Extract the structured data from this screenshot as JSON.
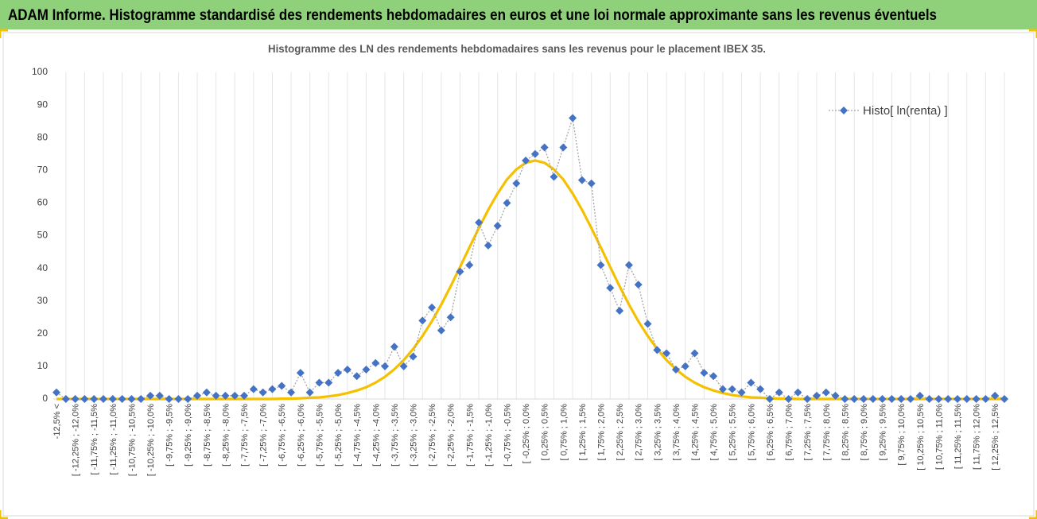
{
  "header": {
    "title": "ADAM Informe. Histogramme standardisé des rendements hebdomadaires en euros et une loi normale approximante sans les revenus éventuels"
  },
  "chart_data": {
    "type": "line",
    "title": "Histogramme des LN des rendements hebdomadaires sans les revenus pour le placement IBEX 35.",
    "categories": [
      "-12,5% <",
      null,
      "[ -12,25% ; -12,0%",
      null,
      "[ -11,75% ; -11,5%",
      null,
      "[ -11,25% ; -11,0%",
      null,
      "[ -10,75% ; -10,5%",
      null,
      "[ -10,25% ; -10,0%",
      null,
      "[ -9,75% ; -9,5%",
      null,
      "[ -9,25% ; -9,0%",
      null,
      "[ -8,75% ; -8,5%",
      null,
      "[ -8,25% ; -8,0%",
      null,
      "[ -7,75% ; -7,5%",
      null,
      "[ -7,25% ; -7,0%",
      null,
      "[ -6,75% ; -6,5%",
      null,
      "[ -6,25% ; -6,0%",
      null,
      "[ -5,75% ; -5,5%",
      null,
      "[ -5,25% ; -5,0%",
      null,
      "[ -4,75% ; -4,5%",
      null,
      "[ -4,25% ; -4,0%",
      null,
      "[ -3,75% ; -3,5%",
      null,
      "[ -3,25% ; -3,0%",
      null,
      "[ -2,75% ; -2,5%",
      null,
      "[ -2,25% ; -2,0%",
      null,
      "[ -1,75% ; -1,5%",
      null,
      "[ -1,25% ; -1,0%",
      null,
      "[ -0,75% ; -0,5%",
      null,
      "[ -0,25% ; 0,0%",
      null,
      "[ 0,25% ; 0,5%",
      null,
      "[ 0,75% ; 1,0%",
      null,
      "[ 1,25% ; 1,5%",
      null,
      "[ 1,75% ; 2,0%",
      null,
      "[ 2,25% ; 2,5%",
      null,
      "[ 2,75% ; 3,0%",
      null,
      "[ 3,25% ; 3,5%",
      null,
      "[ 3,75% ; 4,0%",
      null,
      "[ 4,25% ; 4,5%",
      null,
      "[ 4,75% ; 5,0%",
      null,
      "[ 5,25% ; 5,5%",
      null,
      "[ 5,75% ; 6,0%",
      null,
      "[ 6,25% ; 6,5%",
      null,
      "[ 6,75% ; 7,0%",
      null,
      "[ 7,25% ; 7,5%",
      null,
      "[ 7,75% ; 8,0%",
      null,
      "[ 8,25% ; 8,5%",
      null,
      "[ 8,75% ; 9,0%",
      null,
      "[ 9,25% ; 9,5%",
      null,
      "[ 9,75% ; 10,0%",
      null,
      "[ 10,25% ; 10,5%",
      null,
      "[ 10,75% ; 11,0%",
      null,
      "[ 11,25% ; 11,5%",
      null,
      "[ 11,75% ; 12,0%",
      null,
      "[ 12,25% ; 12,5%",
      null
    ],
    "series": [
      {
        "name": "Histo[ ln(renta) ]",
        "color": "#4472c4",
        "line_color": "#a6a6a6",
        "values": [
          2,
          0,
          0,
          0,
          0,
          0,
          0,
          0,
          0,
          0,
          1,
          1,
          0,
          0,
          0,
          1,
          2,
          1,
          1,
          1,
          1,
          3,
          2,
          3,
          4,
          2,
          8,
          2,
          5,
          5,
          8,
          9,
          7,
          9,
          11,
          10,
          16,
          10,
          13,
          24,
          28,
          21,
          25,
          39,
          41,
          54,
          47,
          53,
          60,
          66,
          73,
          75,
          77,
          68,
          77,
          86,
          67,
          66,
          41,
          34,
          27,
          41,
          35,
          23,
          15,
          14,
          9,
          10,
          14,
          8,
          7,
          3,
          3,
          2,
          5,
          3,
          0,
          2,
          0,
          2,
          0,
          1,
          2,
          1,
          0,
          0,
          0,
          0,
          0,
          0,
          0,
          0,
          1,
          0,
          0,
          0,
          0,
          0,
          0,
          0,
          1,
          0
        ]
      },
      {
        "color": "#f5c000",
        "values": [
          0,
          0,
          0,
          0,
          0,
          0,
          0,
          0,
          0,
          0,
          0,
          0,
          0,
          0,
          0,
          0,
          0,
          0,
          0,
          0,
          0,
          0,
          0,
          0,
          0.1,
          0.1,
          0.2,
          0.4,
          0.5,
          0.8,
          1.2,
          1.8,
          2.6,
          3.6,
          5.0,
          6.8,
          9.1,
          11.9,
          15.3,
          19.3,
          23.8,
          28.9,
          34.5,
          40.4,
          46.4,
          52.3,
          57.9,
          62.9,
          67.2,
          70.3,
          72.3,
          73,
          72.3,
          70.3,
          67.2,
          62.9,
          57.9,
          52.3,
          46.4,
          40.4,
          34.5,
          28.9,
          23.8,
          19.3,
          15.3,
          11.9,
          9.1,
          6.8,
          5.0,
          3.6,
          2.6,
          1.8,
          1.2,
          0.8,
          0.5,
          0.4,
          0.2,
          0.1,
          0.1,
          0,
          0,
          0,
          0,
          0,
          0,
          0,
          0,
          0,
          0,
          0,
          0,
          0,
          0,
          0,
          0,
          0,
          0,
          0,
          0,
          0,
          0,
          0
        ]
      }
    ],
    "ylim": [
      0,
      100
    ],
    "yticks": [
      0,
      10,
      20,
      30,
      40,
      50,
      60,
      70,
      80,
      90,
      100
    ],
    "grid": "x",
    "legend": "top-right"
  }
}
